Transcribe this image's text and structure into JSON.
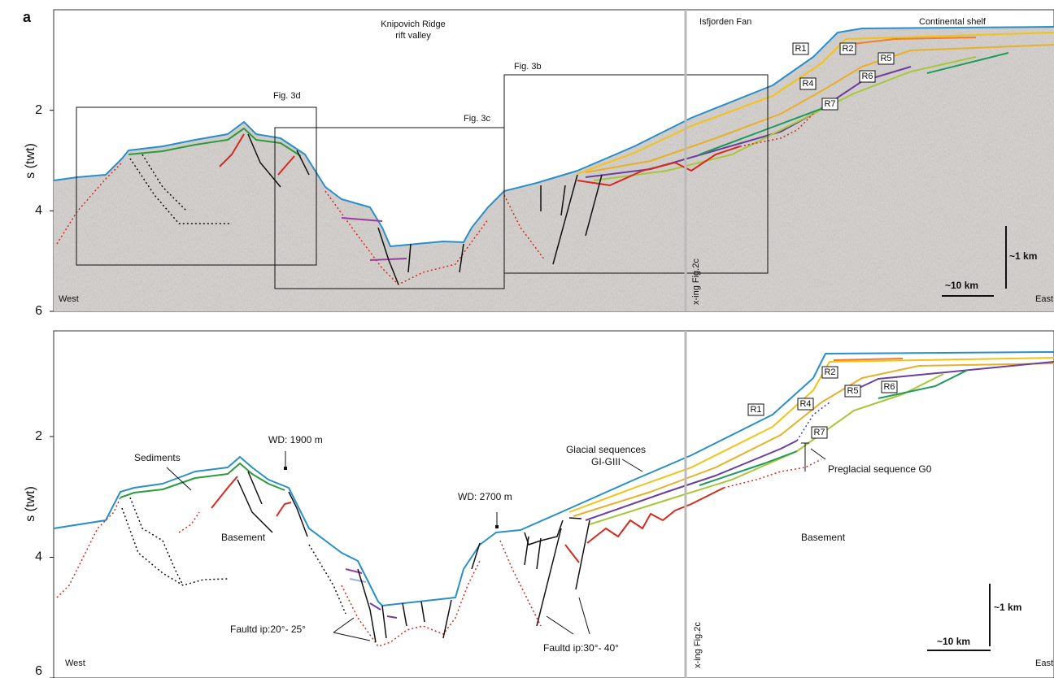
{
  "figure": {
    "label": "a",
    "panels": [
      {
        "y_axis_label": "s (twt)",
        "ylim": [
          0,
          6
        ],
        "yticks": [
          2,
          4,
          6
        ],
        "headings": [
          "Knipovich Ridge",
          "rift valley",
          "Isfjorden Fan",
          "Continental shelf"
        ],
        "boxes": [
          "Fig. 3d",
          "Fig. 3c",
          "Fig. 3b"
        ],
        "reflectors": [
          "R1",
          "R2",
          "R5",
          "R4",
          "R6",
          "R7"
        ],
        "scale_vertical": "~1 km",
        "scale_horizontal": "~10 km",
        "west": "West",
        "east": "East",
        "crossing": "x-ing Fig.2c"
      },
      {
        "y_axis_label": "s (twt)",
        "ylim": [
          0.25,
          6
        ],
        "yticks": [
          2,
          4,
          6
        ],
        "annotations": [
          "Sediments",
          "WD: 1900 m",
          "Basement",
          "WD: 2700 m",
          "Glacial sequences",
          "GI-GIII",
          "Preglacial sequence G0",
          "Basement",
          "Faultd ip:20°- 25°",
          "Faultd ip:30°- 40°"
        ],
        "reflectors": [
          "R1",
          "R2",
          "R5",
          "R4",
          "R6",
          "R7"
        ],
        "scale_vertical": "~1 km",
        "scale_horizontal": "~10 km",
        "west": "West",
        "east": "East",
        "crossing": "x-ing Fig.2c"
      }
    ]
  }
}
